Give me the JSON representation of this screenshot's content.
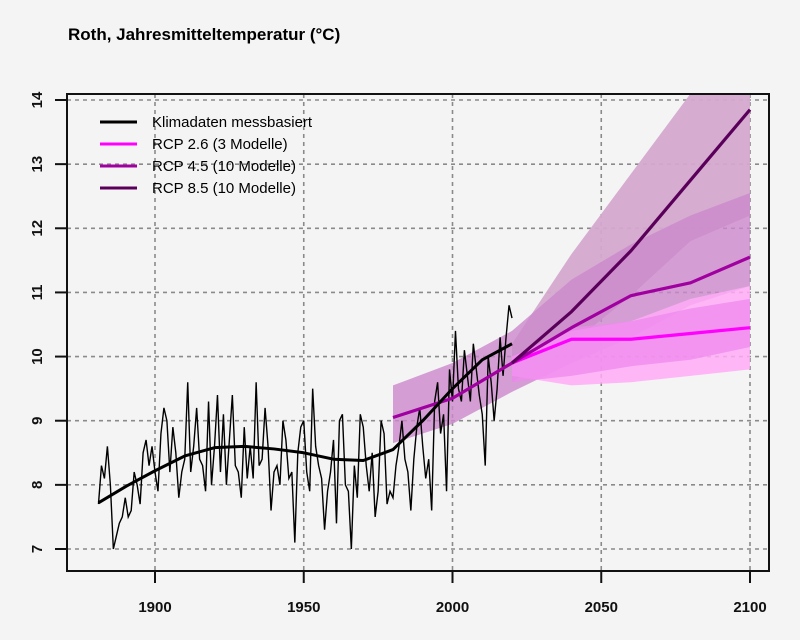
{
  "chart_data": {
    "type": "line",
    "title": "Roth, Jahresmitteltemperatur (°C)",
    "xlabel": "",
    "ylabel": "",
    "xlim": [
      1876,
      2106
    ],
    "ylim": [
      6.7,
      14.1
    ],
    "xticks": [
      1900,
      1950,
      2000,
      2050,
      2100
    ],
    "yticks": [
      7,
      8,
      9,
      10,
      11,
      12,
      13,
      14
    ],
    "grid": true,
    "legend": {
      "position": "top-left",
      "entries": [
        {
          "label": "Klimadaten messbasiert",
          "color": "#000000"
        },
        {
          "label": "RCP 2.6 (3 Modelle)",
          "color": "#ff00ff"
        },
        {
          "label": "RCP 4.5 (10 Modelle)",
          "color": "#a000a0"
        },
        {
          "label": "RCP 8.5 (10 Modelle)",
          "color": "#5a005a"
        }
      ]
    },
    "observed": {
      "name": "Klimadaten messbasiert",
      "color": "#000000",
      "start_year": 1881,
      "annual": [
        7.7,
        8.3,
        8.1,
        8.6,
        8.0,
        7.0,
        7.2,
        7.4,
        7.5,
        7.8,
        7.5,
        7.6,
        8.2,
        8.0,
        7.7,
        8.5,
        8.7,
        8.3,
        8.6,
        8.2,
        7.9,
        8.8,
        9.2,
        9.0,
        8.2,
        8.9,
        8.5,
        7.8,
        8.2,
        8.4,
        9.6,
        8.2,
        8.6,
        9.2,
        8.4,
        8.3,
        7.9,
        9.3,
        8.0,
        8.6,
        9.4,
        8.2,
        9.1,
        8.0,
        8.7,
        9.4,
        8.3,
        8.2,
        7.8,
        8.9,
        8.1,
        8.6,
        8.1,
        9.6,
        8.3,
        8.4,
        9.2,
        8.6,
        7.6,
        8.2,
        8.3,
        8.0,
        9.0,
        8.7,
        8.1,
        8.2,
        7.1,
        8.5,
        8.9,
        9.0,
        8.2,
        7.9,
        9.5,
        8.6,
        8.3,
        8.1,
        7.3,
        7.9,
        8.2,
        8.7,
        7.4,
        9.0,
        9.1,
        8.0,
        7.9,
        7.0,
        8.3,
        7.8,
        9.1,
        8.9,
        8.3,
        7.9,
        8.5,
        7.5,
        7.9,
        9.0,
        8.8,
        7.7,
        7.9,
        7.8,
        8.3,
        8.6,
        9.0,
        8.4,
        8.2,
        7.6,
        8.4,
        8.9,
        9.2,
        8.6,
        8.1,
        8.4,
        7.6,
        9.3,
        9.6,
        8.8,
        9.1,
        7.9,
        9.8,
        9.3,
        10.4,
        9.5,
        9.3,
        10.1,
        9.7,
        9.3,
        10.2,
        9.8,
        9.4,
        9.1,
        8.3,
        10.0,
        9.6,
        9.0,
        9.5,
        10.3,
        9.7,
        10.3,
        10.8,
        10.6
      ],
      "smoothed": [
        [
          1881,
          7.72
        ],
        [
          1890,
          7.97
        ],
        [
          1900,
          8.22
        ],
        [
          1910,
          8.45
        ],
        [
          1920,
          8.58
        ],
        [
          1930,
          8.6
        ],
        [
          1940,
          8.56
        ],
        [
          1950,
          8.5
        ],
        [
          1960,
          8.4
        ],
        [
          1970,
          8.38
        ],
        [
          1980,
          8.55
        ],
        [
          1990,
          9.0
        ],
        [
          2000,
          9.5
        ],
        [
          2010,
          9.95
        ],
        [
          2020,
          10.2
        ]
      ]
    },
    "scenarios": [
      {
        "name": "RCP 2.6 (3 Modelle)",
        "color": "#ff00ff",
        "median": [
          [
            2020,
            9.9
          ],
          [
            2040,
            10.27
          ],
          [
            2060,
            10.27
          ],
          [
            2080,
            10.36
          ],
          [
            2100,
            10.45
          ]
        ],
        "band_outer": {
          "color": "#ffaaf7",
          "upper": [
            [
              2020,
              10.0
            ],
            [
              2040,
              10.4
            ],
            [
              2060,
              10.55
            ],
            [
              2080,
              10.9
            ],
            [
              2100,
              11.1
            ]
          ],
          "lower": [
            [
              2020,
              9.7
            ],
            [
              2040,
              9.55
            ],
            [
              2060,
              9.6
            ],
            [
              2080,
              9.7
            ],
            [
              2100,
              9.8
            ]
          ]
        },
        "band_inner": {
          "color": "#ee88ee",
          "upper": [
            [
              2020,
              10.0
            ],
            [
              2040,
              10.45
            ],
            [
              2060,
              10.55
            ],
            [
              2080,
              10.75
            ],
            [
              2100,
              10.9
            ]
          ],
          "lower": [
            [
              2020,
              9.6
            ],
            [
              2040,
              9.7
            ],
            [
              2060,
              9.85
            ],
            [
              2080,
              9.95
            ],
            [
              2100,
              10.15
            ]
          ]
        }
      },
      {
        "name": "RCP 4.5 (10 Modelle)",
        "color": "#a000a0",
        "start_year": 1980,
        "median": [
          [
            1980,
            9.05
          ],
          [
            2000,
            9.35
          ],
          [
            2020,
            9.9
          ],
          [
            2040,
            10.45
          ],
          [
            2060,
            10.95
          ],
          [
            2080,
            11.15
          ],
          [
            2100,
            11.55
          ]
        ],
        "band": {
          "color": "#cc88cc",
          "upper": [
            [
              1980,
              9.55
            ],
            [
              2000,
              9.9
            ],
            [
              2020,
              10.4
            ],
            [
              2040,
              11.2
            ],
            [
              2060,
              11.75
            ],
            [
              2080,
              12.2
            ],
            [
              2100,
              12.55
            ]
          ],
          "lower": [
            [
              1980,
              8.65
            ],
            [
              2000,
              8.95
            ],
            [
              2020,
              9.45
            ],
            [
              2040,
              9.9
            ],
            [
              2060,
              10.3
            ],
            [
              2080,
              10.8
            ],
            [
              2100,
              11.1
            ]
          ]
        }
      },
      {
        "name": "RCP 8.5 (10 Modelle)",
        "color": "#5a005a",
        "median": [
          [
            2020,
            9.9
          ],
          [
            2040,
            10.7
          ],
          [
            2060,
            11.65
          ],
          [
            2080,
            12.75
          ],
          [
            2100,
            13.85
          ]
        ],
        "band": {
          "color": "#d4a8cf",
          "upper": [
            [
              2020,
              10.2
            ],
            [
              2040,
              11.6
            ],
            [
              2060,
              12.85
            ],
            [
              2080,
              14.1
            ],
            [
              2100,
              14.1
            ]
          ],
          "lower": [
            [
              2020,
              9.6
            ],
            [
              2040,
              10.2
            ],
            [
              2060,
              10.95
            ],
            [
              2080,
              11.8
            ],
            [
              2100,
              12.2
            ]
          ]
        }
      }
    ]
  }
}
